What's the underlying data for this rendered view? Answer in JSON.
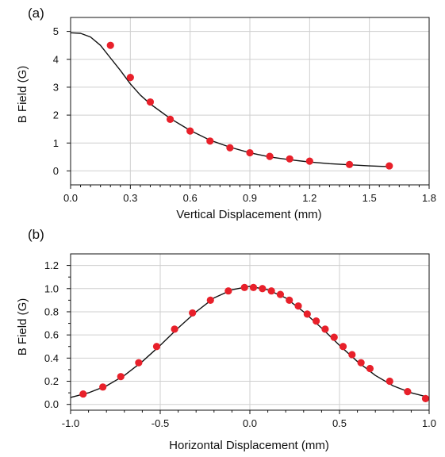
{
  "chart_data": [
    {
      "panel_label": "(a)",
      "type": "scatter",
      "xlabel": "Vertical Displacement (mm)",
      "ylabel": "B Field (G)",
      "xlim": [
        0.0,
        1.8
      ],
      "ylim": [
        -0.5,
        5.5
      ],
      "xticks": [
        "0.0",
        "0.3",
        "0.6",
        "0.9",
        "1.2",
        "1.5",
        "1.8"
      ],
      "yticks": [
        "0",
        "1",
        "2",
        "3",
        "4",
        "5"
      ],
      "grid": true,
      "series": [
        {
          "kind": "points",
          "color": "#e8202a",
          "x": [
            0.2,
            0.3,
            0.4,
            0.5,
            0.6,
            0.7,
            0.8,
            0.9,
            1.0,
            1.1,
            1.2,
            1.4,
            1.6
          ],
          "y": [
            4.5,
            3.35,
            2.47,
            1.85,
            1.43,
            1.07,
            0.83,
            0.65,
            0.52,
            0.43,
            0.35,
            0.23,
            0.18
          ]
        },
        {
          "kind": "line",
          "color": "#111111",
          "x": [
            0.0,
            0.05,
            0.1,
            0.15,
            0.2,
            0.25,
            0.3,
            0.35,
            0.4,
            0.5,
            0.6,
            0.7,
            0.8,
            0.9,
            1.0,
            1.1,
            1.2,
            1.3,
            1.4,
            1.5,
            1.6
          ],
          "y": [
            4.95,
            4.93,
            4.8,
            4.5,
            4.05,
            3.6,
            3.12,
            2.72,
            2.4,
            1.88,
            1.45,
            1.1,
            0.85,
            0.65,
            0.5,
            0.4,
            0.32,
            0.26,
            0.22,
            0.18,
            0.15
          ]
        }
      ]
    },
    {
      "panel_label": "(b)",
      "type": "scatter",
      "xlabel": "Horizontal Displacement (mm)",
      "ylabel": "B Field (G)",
      "xlim": [
        -1.0,
        1.0
      ],
      "ylim": [
        -0.05,
        1.3
      ],
      "xticks": [
        "-1.0",
        "-0.5",
        "0.0",
        "0.5",
        "1.0"
      ],
      "yticks": [
        "0.0",
        "0.2",
        "0.4",
        "0.6",
        "0.8",
        "1.0",
        "1.2"
      ],
      "grid": true,
      "series": [
        {
          "kind": "points",
          "color": "#e8202a",
          "x": [
            -0.93,
            -0.82,
            -0.72,
            -0.62,
            -0.52,
            -0.42,
            -0.32,
            -0.22,
            -0.12,
            -0.03,
            0.02,
            0.07,
            0.12,
            0.17,
            0.22,
            0.27,
            0.32,
            0.37,
            0.42,
            0.47,
            0.52,
            0.57,
            0.62,
            0.67,
            0.78,
            0.88,
            0.98
          ],
          "y": [
            0.09,
            0.15,
            0.24,
            0.36,
            0.5,
            0.65,
            0.79,
            0.9,
            0.98,
            1.01,
            1.01,
            1.0,
            0.98,
            0.95,
            0.9,
            0.85,
            0.78,
            0.72,
            0.65,
            0.58,
            0.5,
            0.43,
            0.36,
            0.31,
            0.2,
            0.11,
            0.05
          ]
        },
        {
          "kind": "line",
          "color": "#111111",
          "x": [
            -1.0,
            -0.9,
            -0.8,
            -0.7,
            -0.6,
            -0.5,
            -0.4,
            -0.3,
            -0.2,
            -0.1,
            0.0,
            0.1,
            0.2,
            0.3,
            0.4,
            0.5,
            0.6,
            0.7,
            0.8,
            0.9,
            1.0
          ],
          "y": [
            0.06,
            0.1,
            0.16,
            0.25,
            0.37,
            0.51,
            0.66,
            0.8,
            0.92,
            0.99,
            1.02,
            0.99,
            0.92,
            0.8,
            0.66,
            0.51,
            0.37,
            0.25,
            0.16,
            0.1,
            0.06
          ]
        }
      ]
    }
  ]
}
